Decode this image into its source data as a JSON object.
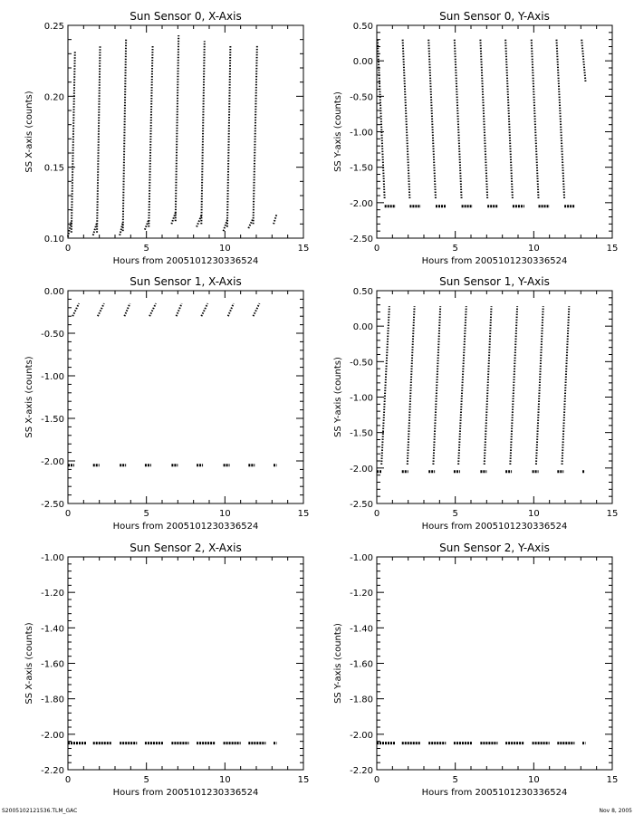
{
  "chart_data": [
    {
      "type": "scatter",
      "title": "Sun Sensor 0, X-Axis",
      "xlabel": "Hours from 2005101230336524",
      "ylabel": "SS X-axis (counts)",
      "xlim": [
        0,
        15
      ],
      "ylim": [
        0.1,
        0.25
      ],
      "xticks": [
        0,
        5,
        10,
        15
      ],
      "yticks": [
        0.1,
        0.15,
        0.2,
        0.25
      ],
      "ytick_labels": [
        "0.10",
        "0.15",
        "0.20",
        "0.25"
      ],
      "segments": [
        {
          "x": [
            0.0,
            0.22
          ],
          "y": [
            0.101,
            0.112
          ]
        },
        {
          "x": [
            0.22,
            0.45
          ],
          "y": [
            0.104,
            0.232
          ]
        },
        {
          "x": [
            1.6,
            1.85
          ],
          "y": [
            0.102,
            0.111
          ]
        },
        {
          "x": [
            1.85,
            2.05
          ],
          "y": [
            0.104,
            0.236
          ]
        },
        {
          "x": [
            3.3,
            3.5
          ],
          "y": [
            0.102,
            0.111
          ]
        },
        {
          "x": [
            3.5,
            3.7
          ],
          "y": [
            0.105,
            0.24
          ]
        },
        {
          "x": [
            4.9,
            5.15
          ],
          "y": [
            0.106,
            0.113
          ]
        },
        {
          "x": [
            5.15,
            5.4
          ],
          "y": [
            0.108,
            0.236
          ]
        },
        {
          "x": [
            6.6,
            6.85
          ],
          "y": [
            0.11,
            0.118
          ]
        },
        {
          "x": [
            6.85,
            7.05
          ],
          "y": [
            0.112,
            0.243
          ]
        },
        {
          "x": [
            8.2,
            8.5
          ],
          "y": [
            0.108,
            0.116
          ]
        },
        {
          "x": [
            8.5,
            8.7
          ],
          "y": [
            0.11,
            0.239
          ]
        },
        {
          "x": [
            9.9,
            10.15
          ],
          "y": [
            0.105,
            0.113
          ]
        },
        {
          "x": [
            10.15,
            10.35
          ],
          "y": [
            0.108,
            0.236
          ]
        },
        {
          "x": [
            11.5,
            11.8
          ],
          "y": [
            0.107,
            0.114
          ]
        },
        {
          "x": [
            11.8,
            12.05
          ],
          "y": [
            0.11,
            0.236
          ]
        },
        {
          "x": [
            13.1,
            13.3
          ],
          "y": [
            0.11,
            0.117
          ]
        }
      ]
    },
    {
      "type": "scatter",
      "title": "Sun Sensor 0, Y-Axis",
      "xlabel": "Hours from 2005101230336524",
      "ylabel": "SS Y-axis (counts)",
      "xlim": [
        0,
        15
      ],
      "ylim": [
        -2.5,
        0.5
      ],
      "xticks": [
        0,
        5,
        10,
        15
      ],
      "yticks": [
        -2.5,
        -2.0,
        -1.5,
        -1.0,
        -0.5,
        0.0,
        0.5
      ],
      "ytick_labels": [
        "-2.50",
        "-2.00",
        "-1.50",
        "-1.00",
        "-0.50",
        "0.00",
        "0.50"
      ],
      "segments": [
        {
          "x": [
            0.05,
            0.5
          ],
          "y": [
            0.3,
            -1.95
          ]
        },
        {
          "x": [
            0.5,
            1.2
          ],
          "y": [
            -2.05,
            -2.05
          ]
        },
        {
          "x": [
            1.65,
            2.1
          ],
          "y": [
            0.3,
            -1.95
          ]
        },
        {
          "x": [
            2.1,
            2.8
          ],
          "y": [
            -2.05,
            -2.05
          ]
        },
        {
          "x": [
            3.3,
            3.75
          ],
          "y": [
            0.3,
            -1.95
          ]
        },
        {
          "x": [
            3.75,
            4.4
          ],
          "y": [
            -2.05,
            -2.05
          ]
        },
        {
          "x": [
            4.95,
            5.4
          ],
          "y": [
            0.3,
            -1.95
          ]
        },
        {
          "x": [
            5.4,
            6.1
          ],
          "y": [
            -2.05,
            -2.05
          ]
        },
        {
          "x": [
            6.6,
            7.05
          ],
          "y": [
            0.3,
            -1.95
          ]
        },
        {
          "x": [
            7.05,
            7.7
          ],
          "y": [
            -2.05,
            -2.05
          ]
        },
        {
          "x": [
            8.2,
            8.65
          ],
          "y": [
            0.3,
            -1.95
          ]
        },
        {
          "x": [
            8.65,
            9.4
          ],
          "y": [
            -2.05,
            -2.05
          ]
        },
        {
          "x": [
            9.85,
            10.3
          ],
          "y": [
            0.3,
            -1.95
          ]
        },
        {
          "x": [
            10.3,
            11.0
          ],
          "y": [
            -2.05,
            -2.05
          ]
        },
        {
          "x": [
            11.45,
            11.95
          ],
          "y": [
            0.3,
            -1.95
          ]
        },
        {
          "x": [
            11.95,
            12.6
          ],
          "y": [
            -2.05,
            -2.05
          ]
        },
        {
          "x": [
            13.05,
            13.3
          ],
          "y": [
            0.3,
            -0.3
          ]
        }
      ]
    },
    {
      "type": "scatter",
      "title": "Sun Sensor 1, X-Axis",
      "xlabel": "Hours from 2005101230336524",
      "ylabel": "SS X-axis (counts)",
      "xlim": [
        0,
        15
      ],
      "ylim": [
        -2.5,
        0.0
      ],
      "xticks": [
        0,
        5,
        10,
        15
      ],
      "yticks": [
        -2.5,
        -2.0,
        -1.5,
        -1.0,
        -0.5,
        0.0
      ],
      "ytick_labels": [
        "-2.50",
        "-2.00",
        "-1.50",
        "-1.00",
        "-0.50",
        "0.00"
      ],
      "segments": [
        {
          "x": [
            0.3,
            0.7
          ],
          "y": [
            -0.3,
            -0.15
          ]
        },
        {
          "x": [
            1.9,
            2.3
          ],
          "y": [
            -0.3,
            -0.15
          ]
        },
        {
          "x": [
            3.6,
            3.95
          ],
          "y": [
            -0.3,
            -0.15
          ]
        },
        {
          "x": [
            5.2,
            5.6
          ],
          "y": [
            -0.3,
            -0.15
          ]
        },
        {
          "x": [
            6.9,
            7.25
          ],
          "y": [
            -0.3,
            -0.15
          ]
        },
        {
          "x": [
            8.5,
            8.9
          ],
          "y": [
            -0.3,
            -0.15
          ]
        },
        {
          "x": [
            10.2,
            10.55
          ],
          "y": [
            -0.3,
            -0.15
          ]
        },
        {
          "x": [
            11.8,
            12.2
          ],
          "y": [
            -0.3,
            -0.15
          ]
        },
        {
          "x": [
            0.0,
            0.4
          ],
          "y": [
            -2.05,
            -2.05
          ]
        },
        {
          "x": [
            1.6,
            2.0
          ],
          "y": [
            -2.05,
            -2.05
          ]
        },
        {
          "x": [
            3.3,
            3.7
          ],
          "y": [
            -2.05,
            -2.05
          ]
        },
        {
          "x": [
            4.9,
            5.3
          ],
          "y": [
            -2.05,
            -2.05
          ]
        },
        {
          "x": [
            6.6,
            7.0
          ],
          "y": [
            -2.05,
            -2.05
          ]
        },
        {
          "x": [
            8.2,
            8.6
          ],
          "y": [
            -2.05,
            -2.05
          ]
        },
        {
          "x": [
            9.9,
            10.3
          ],
          "y": [
            -2.05,
            -2.05
          ]
        },
        {
          "x": [
            11.5,
            11.9
          ],
          "y": [
            -2.05,
            -2.05
          ]
        },
        {
          "x": [
            13.1,
            13.3
          ],
          "y": [
            -2.05,
            -2.05
          ]
        }
      ]
    },
    {
      "type": "scatter",
      "title": "Sun Sensor 1, Y-Axis",
      "xlabel": "Hours from 2005101230336524",
      "ylabel": "SS Y-axis (counts)",
      "xlim": [
        0,
        15
      ],
      "ylim": [
        -2.5,
        0.5
      ],
      "xticks": [
        0,
        5,
        10,
        15
      ],
      "yticks": [
        -2.5,
        -2.0,
        -1.5,
        -1.0,
        -0.5,
        0.0,
        0.5
      ],
      "ytick_labels": [
        "-2.50",
        "-2.00",
        "-1.50",
        "-1.00",
        "-0.50",
        "0.00",
        "0.50"
      ],
      "segments": [
        {
          "x": [
            0.3,
            0.8
          ],
          "y": [
            -1.95,
            0.28
          ]
        },
        {
          "x": [
            0.0,
            0.3
          ],
          "y": [
            -2.05,
            -2.05
          ]
        },
        {
          "x": [
            1.95,
            2.4
          ],
          "y": [
            -1.95,
            0.28
          ]
        },
        {
          "x": [
            1.6,
            2.0
          ],
          "y": [
            -2.05,
            -2.05
          ]
        },
        {
          "x": [
            3.6,
            4.05
          ],
          "y": [
            -1.95,
            0.28
          ]
        },
        {
          "x": [
            3.3,
            3.7
          ],
          "y": [
            -2.05,
            -2.05
          ]
        },
        {
          "x": [
            5.2,
            5.7
          ],
          "y": [
            -1.95,
            0.28
          ]
        },
        {
          "x": [
            4.9,
            5.3
          ],
          "y": [
            -2.05,
            -2.05
          ]
        },
        {
          "x": [
            6.85,
            7.3
          ],
          "y": [
            -1.95,
            0.28
          ]
        },
        {
          "x": [
            6.6,
            7.0
          ],
          "y": [
            -2.05,
            -2.05
          ]
        },
        {
          "x": [
            8.5,
            8.95
          ],
          "y": [
            -1.95,
            0.28
          ]
        },
        {
          "x": [
            8.2,
            8.6
          ],
          "y": [
            -2.05,
            -2.05
          ]
        },
        {
          "x": [
            10.15,
            10.6
          ],
          "y": [
            -1.95,
            0.28
          ]
        },
        {
          "x": [
            9.9,
            10.3
          ],
          "y": [
            -2.05,
            -2.05
          ]
        },
        {
          "x": [
            11.8,
            12.25
          ],
          "y": [
            -1.95,
            0.28
          ]
        },
        {
          "x": [
            11.5,
            11.9
          ],
          "y": [
            -2.05,
            -2.05
          ]
        },
        {
          "x": [
            13.1,
            13.25
          ],
          "y": [
            -2.05,
            -2.05
          ]
        }
      ]
    },
    {
      "type": "scatter",
      "title": "Sun Sensor 2, X-Axis",
      "xlabel": "Hours from 2005101230336524",
      "ylabel": "SS X-axis (counts)",
      "xlim": [
        0,
        15
      ],
      "ylim": [
        -2.2,
        -1.0
      ],
      "xticks": [
        0,
        5,
        10,
        15
      ],
      "yticks": [
        -2.2,
        -2.0,
        -1.8,
        -1.6,
        -1.4,
        -1.2,
        -1.0
      ],
      "ytick_labels": [
        "-2.20",
        "-2.00",
        "-1.80",
        "-1.60",
        "-1.40",
        "-1.20",
        "-1.00"
      ],
      "segments": [
        {
          "x": [
            0.0,
            1.2
          ],
          "y": [
            -2.05,
            -2.05
          ]
        },
        {
          "x": [
            1.6,
            2.8
          ],
          "y": [
            -2.05,
            -2.05
          ]
        },
        {
          "x": [
            3.3,
            4.4
          ],
          "y": [
            -2.05,
            -2.05
          ]
        },
        {
          "x": [
            4.9,
            6.1
          ],
          "y": [
            -2.05,
            -2.05
          ]
        },
        {
          "x": [
            6.6,
            7.7
          ],
          "y": [
            -2.05,
            -2.05
          ]
        },
        {
          "x": [
            8.2,
            9.4
          ],
          "y": [
            -2.05,
            -2.05
          ]
        },
        {
          "x": [
            9.9,
            11.0
          ],
          "y": [
            -2.05,
            -2.05
          ]
        },
        {
          "x": [
            11.5,
            12.6
          ],
          "y": [
            -2.05,
            -2.05
          ]
        },
        {
          "x": [
            13.1,
            13.3
          ],
          "y": [
            -2.05,
            -2.05
          ]
        }
      ]
    },
    {
      "type": "scatter",
      "title": "Sun Sensor 2, Y-Axis",
      "xlabel": "Hours from 2005101230336524",
      "ylabel": "SS Y-axis (counts)",
      "xlim": [
        0,
        15
      ],
      "ylim": [
        -2.2,
        -1.0
      ],
      "xticks": [
        0,
        5,
        10,
        15
      ],
      "yticks": [
        -2.2,
        -2.0,
        -1.8,
        -1.6,
        -1.4,
        -1.2,
        -1.0
      ],
      "ytick_labels": [
        "-2.20",
        "-2.00",
        "-1.80",
        "-1.60",
        "-1.40",
        "-1.20",
        "-1.00"
      ],
      "segments": [
        {
          "x": [
            0.0,
            1.2
          ],
          "y": [
            -2.05,
            -2.05
          ]
        },
        {
          "x": [
            1.6,
            2.8
          ],
          "y": [
            -2.05,
            -2.05
          ]
        },
        {
          "x": [
            3.3,
            4.4
          ],
          "y": [
            -2.05,
            -2.05
          ]
        },
        {
          "x": [
            4.9,
            6.1
          ],
          "y": [
            -2.05,
            -2.05
          ]
        },
        {
          "x": [
            6.6,
            7.7
          ],
          "y": [
            -2.05,
            -2.05
          ]
        },
        {
          "x": [
            8.2,
            9.4
          ],
          "y": [
            -2.05,
            -2.05
          ]
        },
        {
          "x": [
            9.9,
            11.0
          ],
          "y": [
            -2.05,
            -2.05
          ]
        },
        {
          "x": [
            11.5,
            12.6
          ],
          "y": [
            -2.05,
            -2.05
          ]
        },
        {
          "x": [
            13.1,
            13.3
          ],
          "y": [
            -2.05,
            -2.05
          ]
        }
      ]
    }
  ],
  "footer": {
    "left": "S2005102121536.TLM_GAC",
    "right": "Nov  8, 2005"
  }
}
